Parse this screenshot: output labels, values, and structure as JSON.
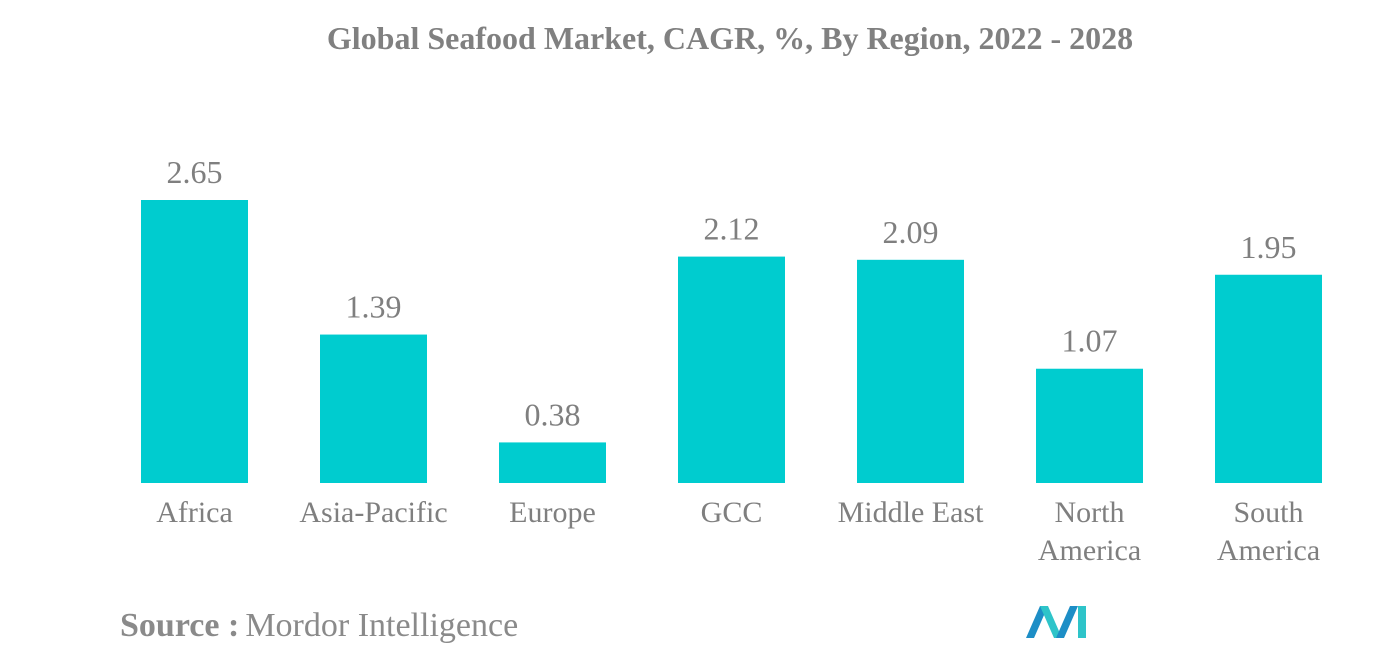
{
  "title": "Global Seafood Market, CAGR, %, By Region, 2022 - 2028",
  "source": {
    "label": "Source :",
    "value": "Mordor Intelligence"
  },
  "logo": {
    "icon": "mordor-intelligence-logo-icon",
    "colors": [
      "#1d8ec6",
      "#2ec4c9"
    ]
  },
  "chart_data": {
    "type": "bar",
    "title": "Global Seafood Market, CAGR, %, By Region, 2022 - 2028",
    "xlabel": "",
    "ylabel": "",
    "grid": false,
    "bar_color": "#00cccf",
    "ylim": [
      0,
      2.65
    ],
    "categories": [
      [
        "Africa"
      ],
      [
        "Asia-Pacific"
      ],
      [
        "Europe"
      ],
      [
        "GCC"
      ],
      [
        "Middle East"
      ],
      [
        "North",
        "America"
      ],
      [
        "South",
        "America"
      ]
    ],
    "values": [
      2.65,
      1.39,
      0.38,
      2.12,
      2.09,
      1.07,
      1.95
    ],
    "value_labels": [
      "2.65",
      "1.39",
      "0.38",
      "2.12",
      "2.09",
      "1.07",
      "1.95"
    ]
  }
}
